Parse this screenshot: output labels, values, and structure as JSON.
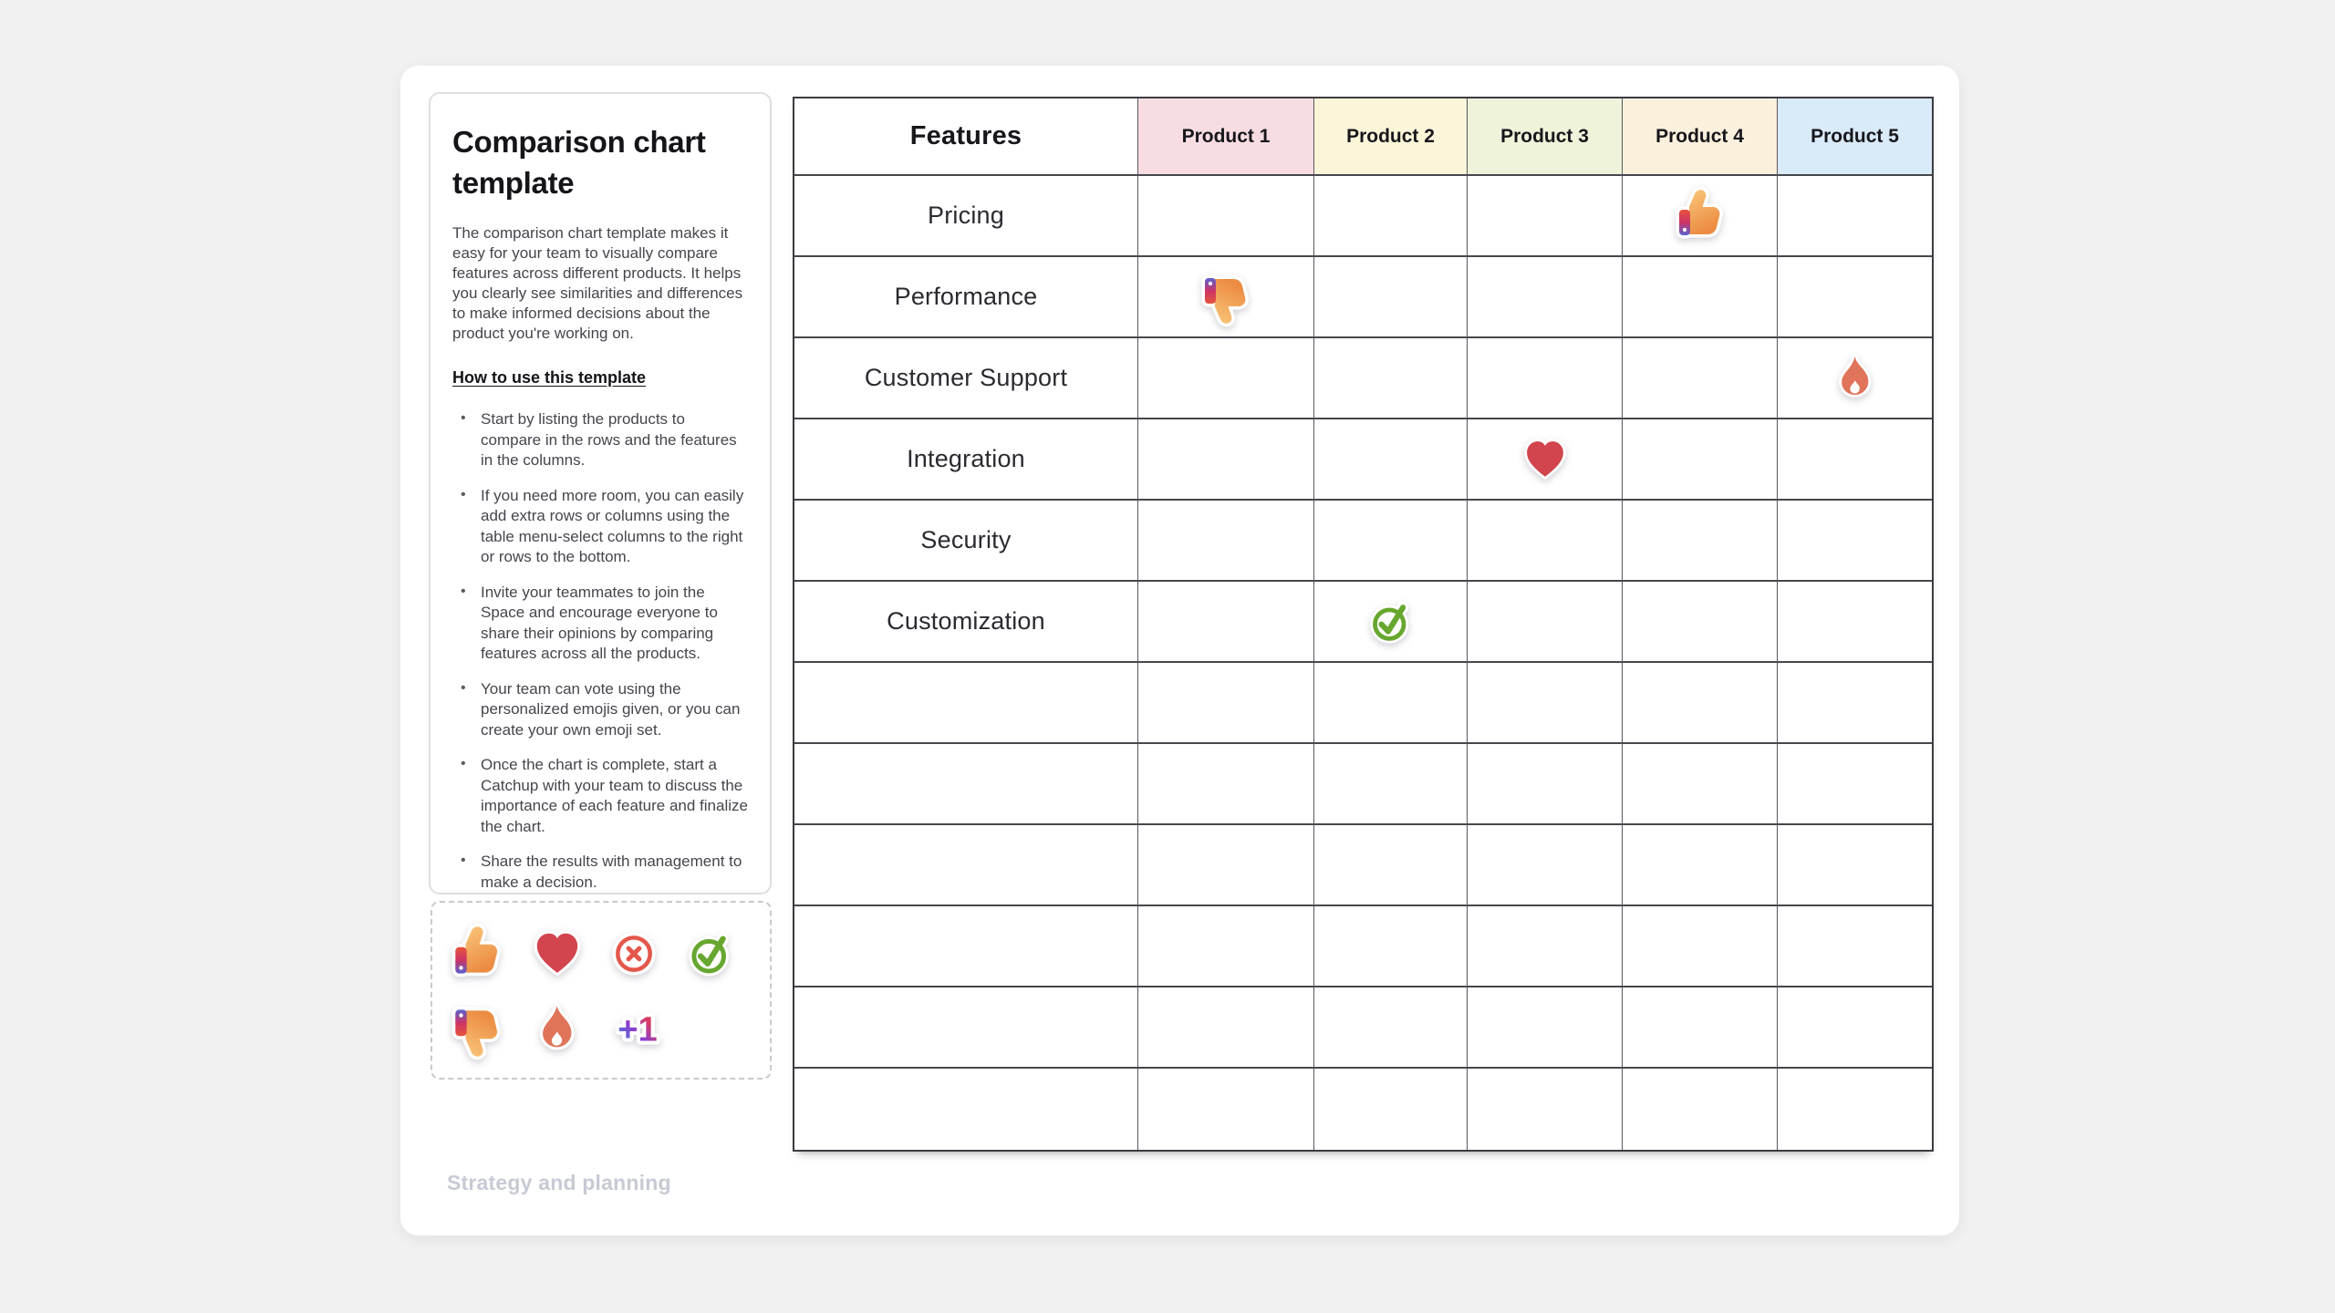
{
  "board": {
    "label": "Strategy and planning"
  },
  "panel": {
    "title": "Comparison chart template",
    "description": "The comparison chart template makes it easy for your team to visually compare features across different products. It helps you clearly see similarities and differences to make informed decisions about the product you're working on.",
    "how_to_heading": "How to use this template",
    "bullets": [
      "Start by listing the products to compare in the rows and the features in the columns.",
      "If you need more room, you can easily add extra rows or columns using the table menu-select columns to the right or rows to the bottom.",
      "Invite your teammates to join the Space and encourage everyone to share their opinions by comparing features across all the products.",
      "Your team can vote using the personalized emojis given, or you can create your own emoji set.",
      "Once the chart is complete, start a Catchup with your team to discuss the importance of each feature and finalize the chart.",
      "Share the results with management to make a decision."
    ]
  },
  "palette": {
    "plus_one_label": "+1",
    "rows": [
      [
        "thumbs-up",
        "heart",
        "cross-circle",
        "check-circle"
      ],
      [
        "thumbs-down",
        "fire",
        "plus-one"
      ]
    ]
  },
  "table": {
    "features_header": "Features",
    "products": [
      {
        "label": "Product 1",
        "color": "#f7dde2"
      },
      {
        "label": "Product 2",
        "color": "#fbf6d9"
      },
      {
        "label": "Product 3",
        "color": "#eef3da"
      },
      {
        "label": "Product 4",
        "color": "#fbf0dc"
      },
      {
        "label": "Product 5",
        "color": "#d9eaf9"
      }
    ],
    "rows": [
      {
        "feature": "Pricing",
        "stickers": [
          "",
          "",
          "",
          "thumbs-up",
          ""
        ]
      },
      {
        "feature": "Performance",
        "stickers": [
          "thumbs-down",
          "",
          "",
          "",
          ""
        ]
      },
      {
        "feature": "Customer Support",
        "stickers": [
          "",
          "",
          "",
          "",
          "fire"
        ]
      },
      {
        "feature": "Integration",
        "stickers": [
          "",
          "",
          "heart",
          "",
          ""
        ]
      },
      {
        "feature": "Security",
        "stickers": [
          "",
          "",
          "",
          "",
          ""
        ]
      },
      {
        "feature": "Customization",
        "stickers": [
          "",
          "check-circle",
          "",
          "",
          ""
        ]
      },
      {
        "feature": "",
        "stickers": [
          "",
          "",
          "",
          "",
          ""
        ]
      },
      {
        "feature": "",
        "stickers": [
          "",
          "",
          "",
          "",
          ""
        ]
      },
      {
        "feature": "",
        "stickers": [
          "",
          "",
          "",
          "",
          ""
        ]
      },
      {
        "feature": "",
        "stickers": [
          "",
          "",
          "",
          "",
          ""
        ]
      },
      {
        "feature": "",
        "stickers": [
          "",
          "",
          "",
          "",
          ""
        ]
      },
      {
        "feature": "",
        "stickers": [
          "",
          "",
          "",
          "",
          ""
        ]
      }
    ]
  },
  "colors": {
    "page_bg": "#f1f1f2",
    "card_bg": "#ffffff",
    "hand_light": "#f9c77b",
    "hand_dark": "#ec8c42",
    "sleeve_top": "#e8543d",
    "sleeve_mid": "#cc3366",
    "sleeve_bottom": "#5a62d2",
    "heart": "#d2444e",
    "cross": "#e4574b",
    "check": "#67a72f",
    "fire": "#e0745a",
    "plus_gradient": [
      "#2f9bdd",
      "#8a3ed0",
      "#d63a67",
      "#e2452f"
    ],
    "grid_line": "#47464c",
    "board_label_text": "#c7cad3"
  }
}
